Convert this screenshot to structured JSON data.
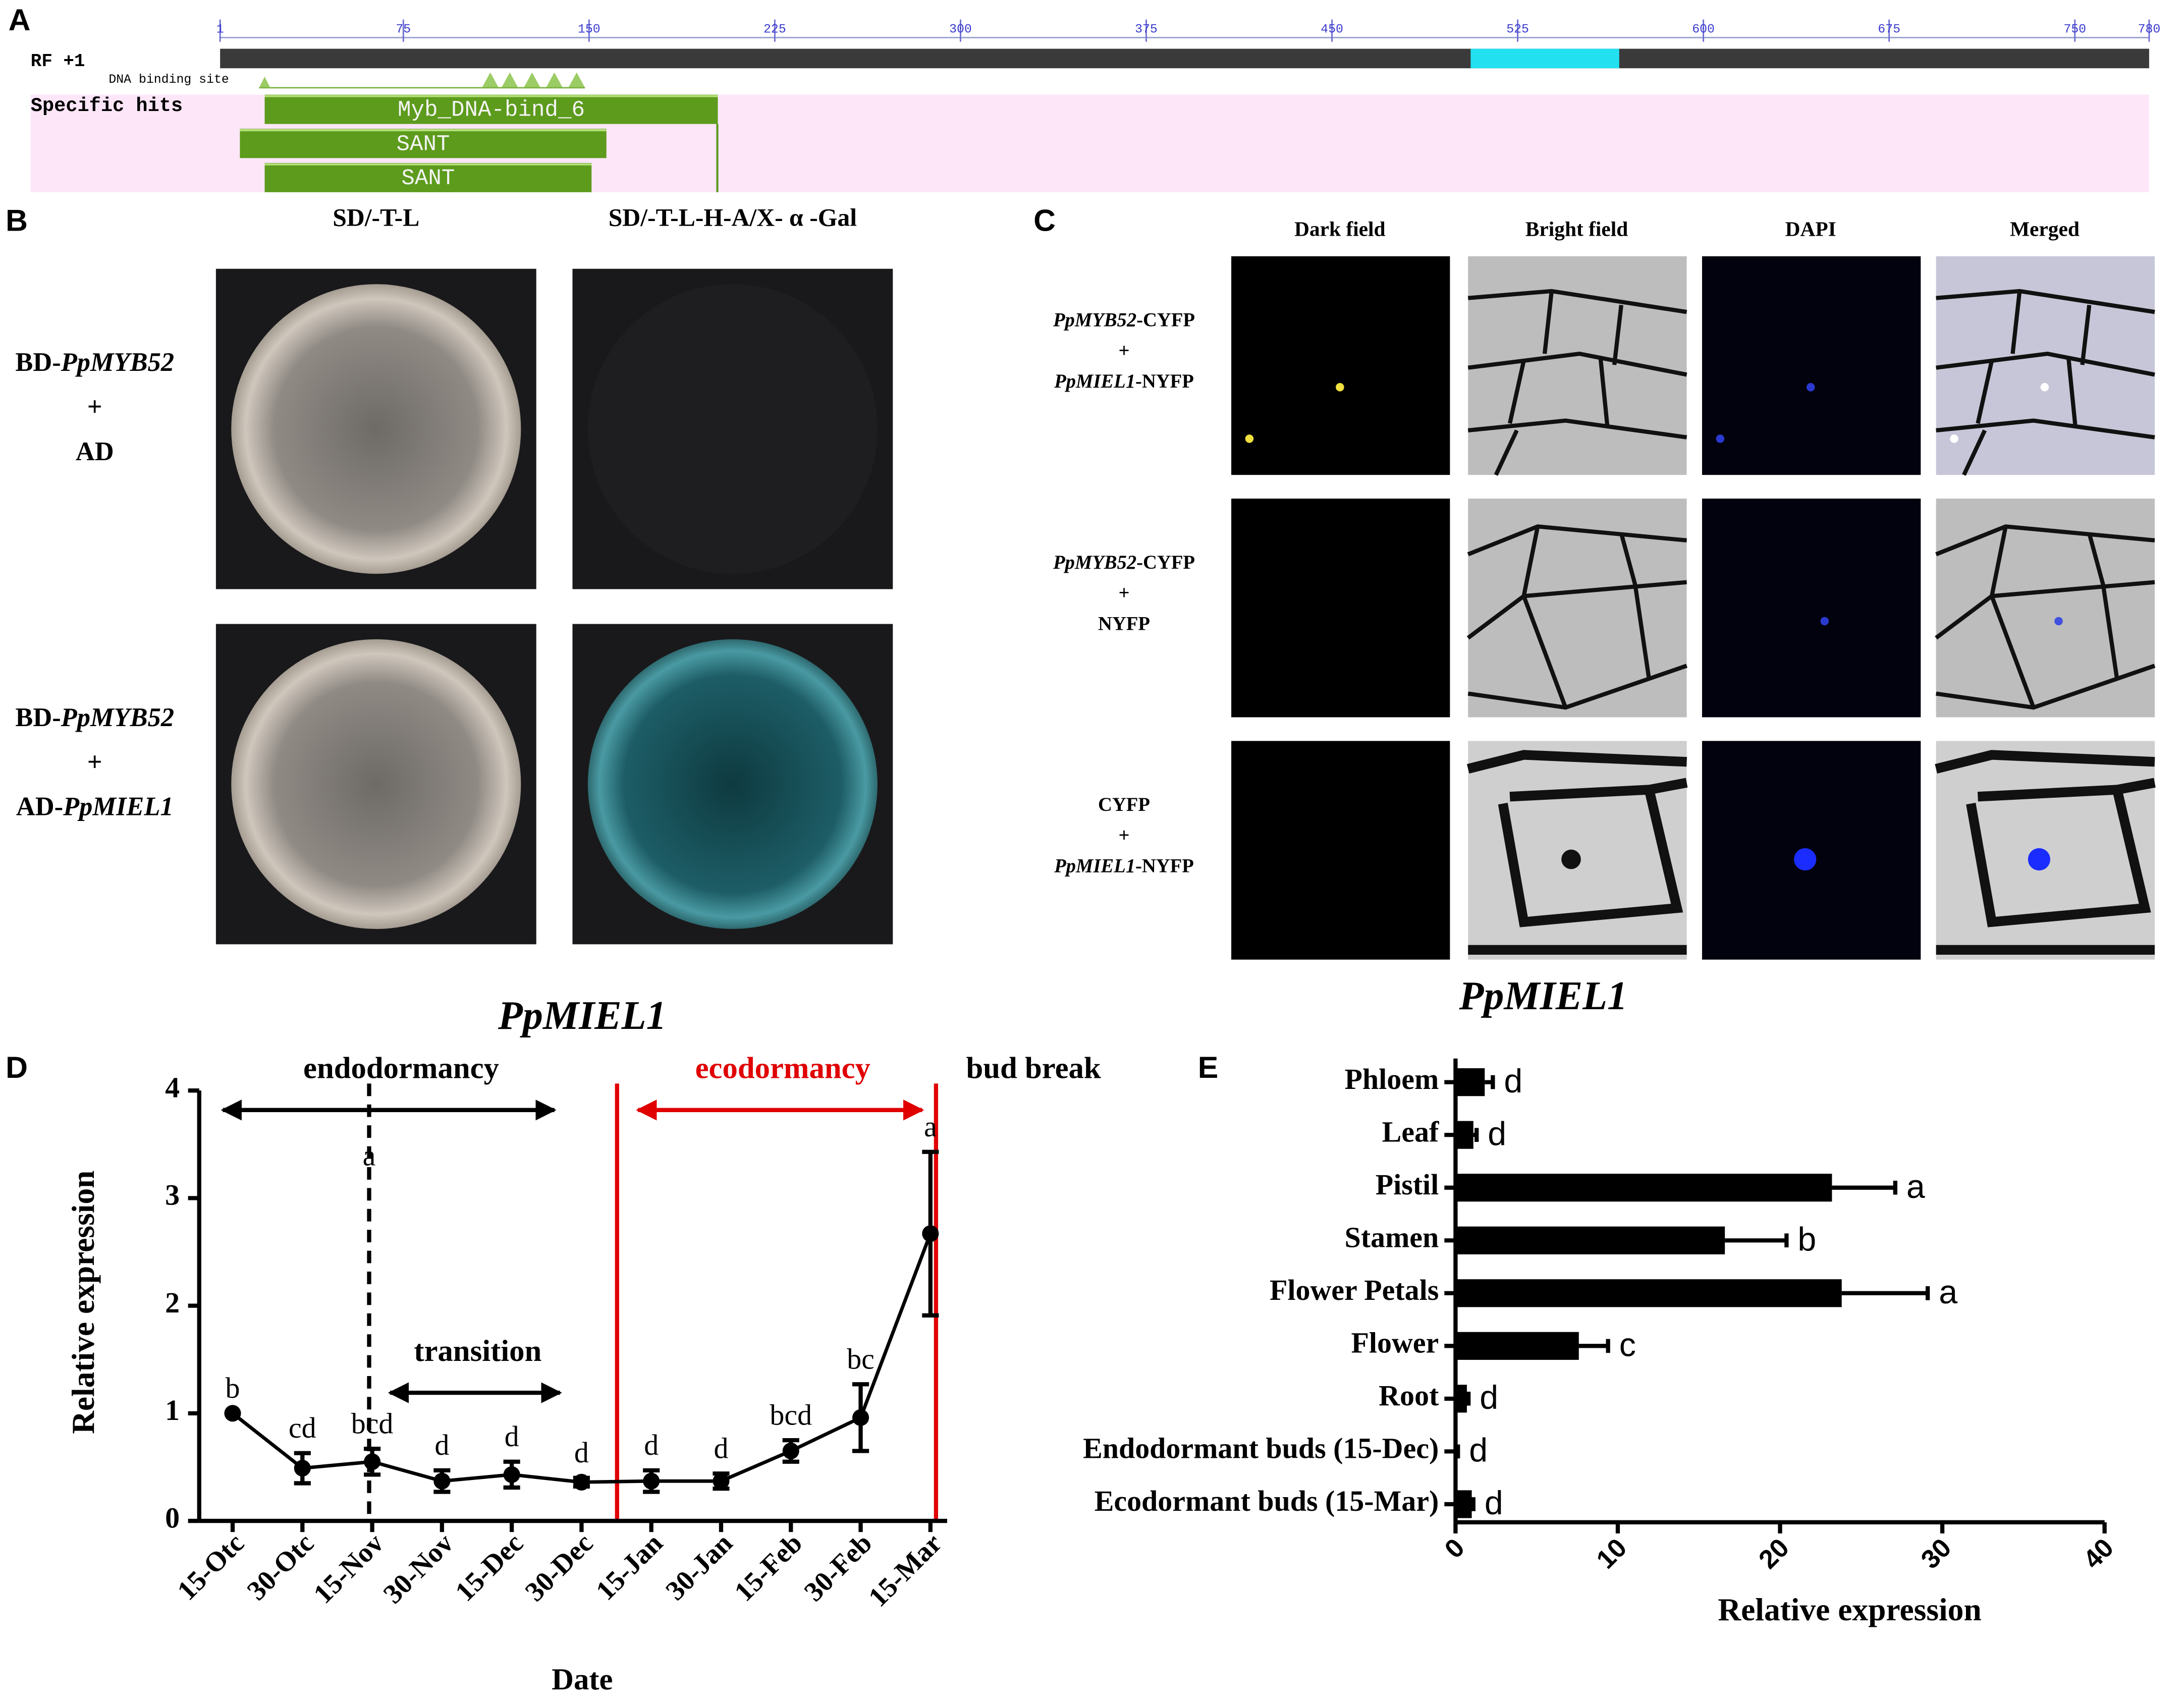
{
  "panel_a": {
    "label": "A",
    "track": "RF +1",
    "xlim": [
      1,
      780
    ],
    "ticks": [
      1,
      75,
      150,
      225,
      300,
      375,
      450,
      525,
      600,
      675,
      750,
      780
    ],
    "highlight": [
      506,
      566
    ],
    "site_label": "DNA binding site",
    "hits_label": "Specific hits",
    "hits": [
      {
        "name": "Myb_DNA-bind_6",
        "start": 19,
        "end": 202
      },
      {
        "name": "SANT",
        "start": 9,
        "end": 157
      },
      {
        "name": "SANT",
        "start": 19,
        "end": 151
      }
    ]
  },
  "panel_b": {
    "label": "B",
    "columns": [
      "SD/-T-L",
      "SD/-T-L-H-A/X- α -Gal"
    ],
    "rows": [
      [
        [
          {
            "text": "BD-"
          },
          {
            "text": "PpMYB52",
            "italic": true
          }
        ],
        [
          {
            "text": "+"
          }
        ],
        [
          {
            "text": "AD"
          }
        ]
      ],
      [
        [
          {
            "text": "BD-"
          },
          {
            "text": "PpMYB52",
            "italic": true
          }
        ],
        [
          {
            "text": "+"
          }
        ],
        [
          {
            "text": "AD-"
          },
          {
            "text": "PpMIEL1",
            "italic": true
          }
        ]
      ]
    ]
  },
  "panel_c": {
    "label": "C",
    "columns": [
      "Dark field",
      "Bright field",
      "DAPI",
      "Merged"
    ],
    "rows": [
      [
        [
          {
            "text": "PpMYB52",
            "italic": true
          },
          {
            "text": "-CYFP"
          }
        ],
        [
          {
            "text": "+"
          }
        ],
        [
          {
            "text": "PpMIEL1",
            "italic": true
          },
          {
            "text": "-NYFP"
          }
        ]
      ],
      [
        [
          {
            "text": "PpMYB52",
            "italic": true
          },
          {
            "text": "-CYFP"
          }
        ],
        [
          {
            "text": "+"
          }
        ],
        [
          {
            "text": "NYFP"
          }
        ]
      ],
      [
        [
          {
            "text": "CYFP"
          }
        ],
        [
          {
            "text": "+"
          }
        ],
        [
          {
            "text": "PpMIEL1",
            "italic": true
          },
          {
            "text": "-NYFP"
          }
        ]
      ]
    ]
  },
  "chart_data": [
    {
      "type": "line",
      "panel": "D",
      "title": "PpMIEL1",
      "xlabel": "Date",
      "ylabel": "Relative expression",
      "categories": [
        "15-Otc",
        "30-Otc",
        "15-Nov",
        "30-Nov",
        "15-Dec",
        "30-Dec",
        "15-Jan",
        "30-Jan",
        "15-Feb",
        "30-Feb",
        "15-Mar"
      ],
      "series": [
        {
          "color": "#000000",
          "values": [
            1.0,
            0.49,
            0.55,
            0.37,
            0.43,
            0.36,
            0.37,
            0.37,
            0.65,
            0.96,
            2.67
          ],
          "errors": [
            0,
            0.14,
            0.12,
            0.1,
            0.12,
            0.04,
            0.1,
            0.07,
            0.1,
            0.31,
            0.76
          ],
          "letters": [
            "b",
            "cd",
            "bcd",
            "d",
            "d",
            "d",
            "d",
            "d",
            "bcd",
            "bc",
            "a"
          ]
        }
      ],
      "ylim": [
        0,
        4
      ],
      "yticks": [
        0,
        1,
        2,
        3,
        4
      ],
      "annotations": [
        {
          "text": "endodormancy",
          "color": "#000000"
        },
        {
          "text": "transition",
          "color": "#000000"
        },
        {
          "text": "ecodormancy",
          "color": "#e00000"
        },
        {
          "text": "bud break",
          "color": "#000000"
        },
        {
          "text": "a",
          "color": "#000000"
        }
      ]
    },
    {
      "type": "hbar",
      "panel": "E",
      "title": "PpMIEL1",
      "xlabel": "Relative expression",
      "categories": [
        "Phloem",
        "Leaf",
        "Pistil",
        "Stamen",
        "Flower Petals",
        "Flower",
        "Root",
        "Endodormant buds (15-Dec)",
        "Ecodormant buds (15-Mar)"
      ],
      "series": [
        {
          "color": "#000000",
          "values": [
            1.8,
            1.1,
            23.2,
            16.6,
            23.8,
            7.6,
            0.7,
            0.1,
            1.0
          ],
          "errors": [
            0.5,
            0.2,
            3.9,
            3.8,
            5.3,
            1.8,
            0.1,
            0.05,
            0.1
          ],
          "letters": [
            "d",
            "d",
            "a",
            "b",
            "a",
            "c",
            "d",
            "d",
            "d"
          ]
        }
      ],
      "xlim": [
        0,
        40
      ],
      "xticks": [
        0,
        10,
        20,
        30,
        40
      ]
    }
  ]
}
